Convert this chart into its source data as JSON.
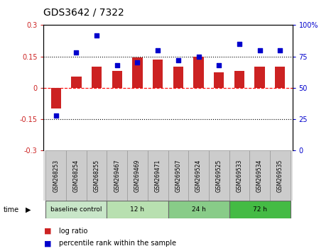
{
  "title": "GDS3642 / 7322",
  "samples": [
    "GSM268253",
    "GSM268254",
    "GSM268255",
    "GSM269467",
    "GSM269469",
    "GSM269471",
    "GSM269507",
    "GSM269524",
    "GSM269525",
    "GSM269533",
    "GSM269534",
    "GSM269535"
  ],
  "log_ratio": [
    -0.1,
    0.055,
    0.1,
    0.08,
    0.145,
    0.135,
    0.1,
    0.15,
    0.075,
    0.08,
    0.1,
    0.1
  ],
  "percentile_rank": [
    28,
    78,
    92,
    68,
    70,
    80,
    72,
    75,
    68,
    85,
    80,
    80
  ],
  "bar_color": "#cc2222",
  "dot_color": "#0000cc",
  "left_ylim": [
    -0.3,
    0.3
  ],
  "right_ylim": [
    0,
    100
  ],
  "left_yticks": [
    -0.3,
    -0.15,
    0.0,
    0.15,
    0.3
  ],
  "right_yticks": [
    0,
    25,
    50,
    75,
    100
  ],
  "left_ytick_labels": [
    "-0.3",
    "-0.15",
    "0",
    "0.15",
    "0.3"
  ],
  "right_ytick_labels": [
    "0",
    "25",
    "50",
    "75",
    "100%"
  ],
  "groups": [
    {
      "label": "baseline control",
      "start": 0,
      "end": 3,
      "color": "#c8e6c8"
    },
    {
      "label": "12 h",
      "start": 3,
      "end": 6,
      "color": "#b8e0b0"
    },
    {
      "label": "24 h",
      "start": 6,
      "end": 9,
      "color": "#88cc88"
    },
    {
      "label": "72 h",
      "start": 9,
      "end": 12,
      "color": "#44bb44"
    }
  ],
  "bg_color": "#ffffff",
  "tick_label_color_left": "#cc2222",
  "tick_label_color_right": "#0000cc",
  "bar_width": 0.5
}
